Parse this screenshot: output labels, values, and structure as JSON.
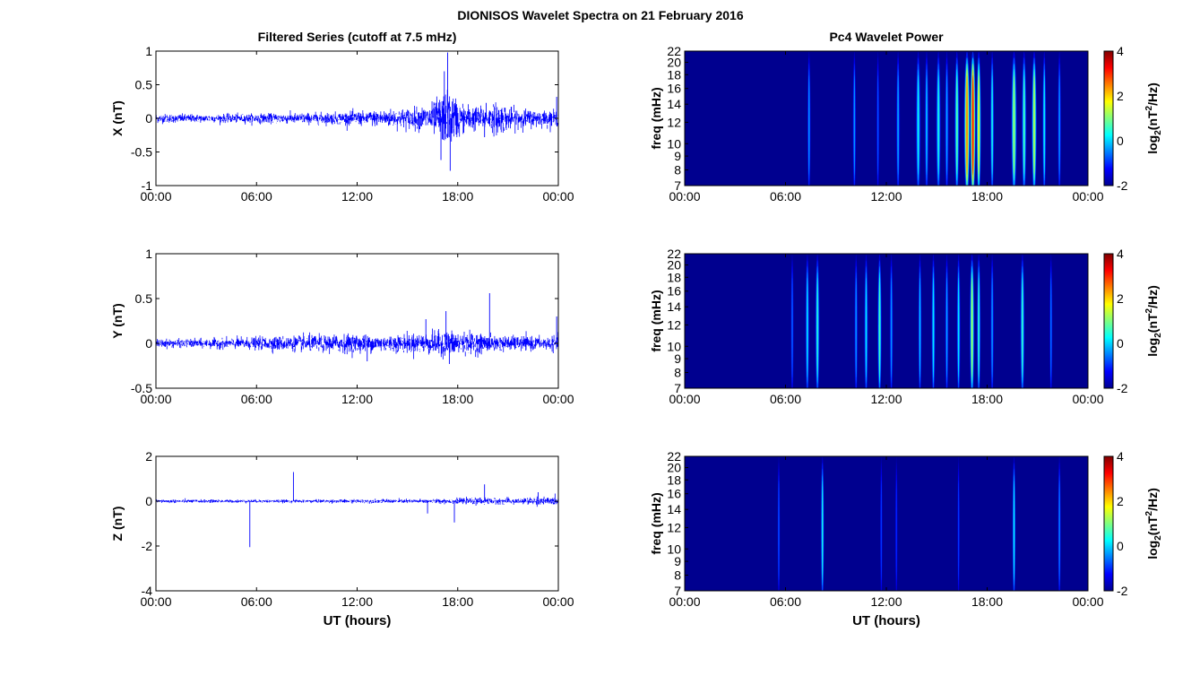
{
  "figure": {
    "title": "DIONISOS Wavelet Spectra on 21 February 2016"
  },
  "chart_data": [
    {
      "type": "line",
      "title": "Filtered Series (cutoff at 7.5 mHz)",
      "ylabel": "X (nT)",
      "xlabel": "",
      "x_ticks": [
        "00:00",
        "06:00",
        "12:00",
        "18:00",
        "00:00"
      ],
      "y_ticks": [
        "1",
        "0.5",
        "0",
        "-0.5",
        "-1"
      ],
      "xlim": [
        0,
        24
      ],
      "ylim": [
        -1,
        1
      ],
      "color": "#0000ff",
      "envelope": {
        "x": [
          0,
          3,
          6,
          9,
          11,
          12,
          13,
          14,
          15,
          16,
          16.5,
          17,
          17.4,
          17.8,
          18.2,
          19,
          19.8,
          20.4,
          21,
          22,
          23,
          24
        ],
        "amplitude": [
          0.06,
          0.05,
          0.06,
          0.07,
          0.08,
          0.09,
          0.1,
          0.12,
          0.13,
          0.16,
          0.2,
          0.3,
          0.35,
          0.3,
          0.2,
          0.16,
          0.14,
          0.22,
          0.15,
          0.12,
          0.1,
          0.1
        ]
      },
      "spikes": [
        {
          "x": 17.0,
          "y": -0.62
        },
        {
          "x": 17.2,
          "y": 0.7
        },
        {
          "x": 17.4,
          "y": 0.98
        },
        {
          "x": 17.55,
          "y": -0.78
        },
        {
          "x": 19.6,
          "y": -0.28
        },
        {
          "x": 19.7,
          "y": 0.23
        },
        {
          "x": 23.9,
          "y": 0.32
        }
      ]
    },
    {
      "type": "heatmap",
      "title": "Pc4 Wavelet Power",
      "ylabel": "freq (mHz)",
      "xlabel": "",
      "x_ticks": [
        "00:00",
        "06:00",
        "12:00",
        "18:00",
        "00:00"
      ],
      "y_ticks": [
        "22",
        "20",
        "18",
        "16",
        "14",
        "12",
        "10",
        "9",
        "8",
        "7"
      ],
      "xlim": [
        0,
        24
      ],
      "ylim": [
        7,
        22
      ],
      "colorbar": {
        "label_main": "log",
        "label_sub": "2",
        "label_rest_a": "(nT",
        "label_sup": "2",
        "label_rest_b": "/Hz)",
        "ticks": [
          "4",
          "2",
          "0",
          "-2"
        ],
        "range": [
          -2,
          4
        ]
      },
      "colormap": "jet",
      "background": "#00008f",
      "events": [
        {
          "t": 7.4,
          "v": -0.3,
          "w": 0.07
        },
        {
          "t": 10.1,
          "v": -0.3,
          "w": 0.07
        },
        {
          "t": 11.5,
          "v": -0.7,
          "w": 0.06
        },
        {
          "t": 12.7,
          "v": -0.2,
          "w": 0.08
        },
        {
          "t": 13.9,
          "v": 0.3,
          "w": 0.1
        },
        {
          "t": 14.4,
          "v": 0.0,
          "w": 0.08
        },
        {
          "t": 15.1,
          "v": 0.4,
          "w": 0.1
        },
        {
          "t": 15.6,
          "v": -0.2,
          "w": 0.08
        },
        {
          "t": 16.2,
          "v": 0.8,
          "w": 0.1
        },
        {
          "t": 16.8,
          "v": 2.5,
          "w": 0.13
        },
        {
          "t": 17.15,
          "v": 3.2,
          "w": 0.12
        },
        {
          "t": 17.5,
          "v": 1.8,
          "w": 0.1
        },
        {
          "t": 18.3,
          "v": 0.4,
          "w": 0.08
        },
        {
          "t": 19.6,
          "v": 1.2,
          "w": 0.12
        },
        {
          "t": 20.2,
          "v": 0.7,
          "w": 0.1
        },
        {
          "t": 20.8,
          "v": 1.4,
          "w": 0.11
        },
        {
          "t": 21.4,
          "v": 0.3,
          "w": 0.08
        },
        {
          "t": 22.3,
          "v": -0.3,
          "w": 0.07
        }
      ]
    },
    {
      "type": "line",
      "title": "",
      "ylabel": "Y (nT)",
      "xlabel": "",
      "x_ticks": [
        "00:00",
        "06:00",
        "12:00",
        "18:00",
        "00:00"
      ],
      "y_ticks": [
        "1",
        "0.5",
        "0",
        "-0.5"
      ],
      "xlim": [
        0,
        24
      ],
      "ylim": [
        -0.5,
        1
      ],
      "color": "#0000ff",
      "envelope": {
        "x": [
          0,
          2,
          4,
          6,
          7,
          8,
          9,
          10,
          11,
          12,
          13,
          14,
          15,
          16,
          17,
          18,
          19,
          20,
          21,
          22,
          23,
          24
        ],
        "amplitude": [
          0.04,
          0.04,
          0.05,
          0.06,
          0.07,
          0.07,
          0.08,
          0.08,
          0.09,
          0.09,
          0.08,
          0.08,
          0.09,
          0.1,
          0.12,
          0.12,
          0.1,
          0.08,
          0.07,
          0.07,
          0.06,
          0.07
        ]
      },
      "spikes": [
        {
          "x": 16.1,
          "y": 0.27
        },
        {
          "x": 17.3,
          "y": 0.36
        },
        {
          "x": 19.9,
          "y": 0.56
        },
        {
          "x": 23.9,
          "y": 0.3
        },
        {
          "x": 17.5,
          "y": -0.23
        },
        {
          "x": 12.6,
          "y": -0.2
        }
      ]
    },
    {
      "type": "heatmap",
      "title": "",
      "ylabel": "freq (mHz)",
      "xlabel": "",
      "x_ticks": [
        "00:00",
        "06:00",
        "12:00",
        "18:00",
        "00:00"
      ],
      "y_ticks": [
        "22",
        "20",
        "18",
        "16",
        "14",
        "12",
        "10",
        "9",
        "8",
        "7"
      ],
      "xlim": [
        0,
        24
      ],
      "ylim": [
        7,
        22
      ],
      "colorbar": {
        "label_main": "log",
        "label_sub": "2",
        "label_rest_a": "(nT",
        "label_sup": "2",
        "label_rest_b": "/Hz)",
        "ticks": [
          "4",
          "2",
          "0",
          "-2"
        ],
        "range": [
          -2,
          4
        ]
      },
      "colormap": "jet",
      "background": "#00008f",
      "events": [
        {
          "t": 6.4,
          "v": -0.6,
          "w": 0.06
        },
        {
          "t": 7.3,
          "v": 0.2,
          "w": 0.08
        },
        {
          "t": 7.9,
          "v": 0.5,
          "w": 0.09
        },
        {
          "t": 10.2,
          "v": -0.3,
          "w": 0.07
        },
        {
          "t": 10.8,
          "v": 0.2,
          "w": 0.08
        },
        {
          "t": 11.6,
          "v": 0.7,
          "w": 0.09
        },
        {
          "t": 12.3,
          "v": -0.3,
          "w": 0.07
        },
        {
          "t": 14.0,
          "v": 0.0,
          "w": 0.07
        },
        {
          "t": 14.8,
          "v": 0.2,
          "w": 0.08
        },
        {
          "t": 15.6,
          "v": -0.2,
          "w": 0.07
        },
        {
          "t": 16.3,
          "v": 0.2,
          "w": 0.08
        },
        {
          "t": 17.1,
          "v": 1.3,
          "w": 0.1
        },
        {
          "t": 17.5,
          "v": 0.6,
          "w": 0.08
        },
        {
          "t": 18.3,
          "v": -0.3,
          "w": 0.07
        },
        {
          "t": 20.1,
          "v": 0.6,
          "w": 0.09
        },
        {
          "t": 21.8,
          "v": -0.5,
          "w": 0.06
        }
      ]
    },
    {
      "type": "line",
      "title": "",
      "ylabel": "Z (nT)",
      "xlabel": "UT (hours)",
      "x_ticks": [
        "00:00",
        "06:00",
        "12:00",
        "18:00",
        "00:00"
      ],
      "y_ticks": [
        "2",
        "0",
        "-2",
        "-4"
      ],
      "xlim": [
        0,
        24
      ],
      "ylim": [
        -4,
        2
      ],
      "color": "#0000ff",
      "envelope": {
        "x": [
          0,
          4,
          8,
          12,
          16,
          18,
          19.5,
          20,
          22,
          23,
          24
        ],
        "amplitude": [
          0.07,
          0.06,
          0.06,
          0.07,
          0.08,
          0.1,
          0.14,
          0.12,
          0.12,
          0.16,
          0.14
        ]
      },
      "spikes": [
        {
          "x": 5.6,
          "y": -2.05
        },
        {
          "x": 8.2,
          "y": 1.3
        },
        {
          "x": 16.2,
          "y": -0.55
        },
        {
          "x": 17.8,
          "y": -0.95
        },
        {
          "x": 19.6,
          "y": 0.75
        },
        {
          "x": 22.8,
          "y": 0.4
        }
      ]
    },
    {
      "type": "heatmap",
      "title": "",
      "ylabel": "freq (mHz)",
      "xlabel": "UT (hours)",
      "x_ticks": [
        "00:00",
        "06:00",
        "12:00",
        "18:00",
        "00:00"
      ],
      "y_ticks": [
        "22",
        "20",
        "18",
        "16",
        "14",
        "12",
        "10",
        "9",
        "8",
        "7"
      ],
      "xlim": [
        0,
        24
      ],
      "ylim": [
        7,
        22
      ],
      "colorbar": {
        "label_main": "log",
        "label_sub": "2",
        "label_rest_a": "(nT",
        "label_sup": "2",
        "label_rest_b": "/Hz)",
        "ticks": [
          "4",
          "2",
          "0",
          "-2"
        ],
        "range": [
          -2,
          4
        ]
      },
      "colormap": "jet",
      "background": "#00008f",
      "events": [
        {
          "t": 5.6,
          "v": -0.7,
          "w": 0.05
        },
        {
          "t": 8.2,
          "v": 0.4,
          "w": 0.07
        },
        {
          "t": 11.7,
          "v": -0.9,
          "w": 0.05
        },
        {
          "t": 12.6,
          "v": -1.0,
          "w": 0.05
        },
        {
          "t": 16.3,
          "v": -0.9,
          "w": 0.05
        },
        {
          "t": 19.6,
          "v": 0.3,
          "w": 0.07
        },
        {
          "t": 22.3,
          "v": -0.4,
          "w": 0.06
        }
      ]
    }
  ]
}
